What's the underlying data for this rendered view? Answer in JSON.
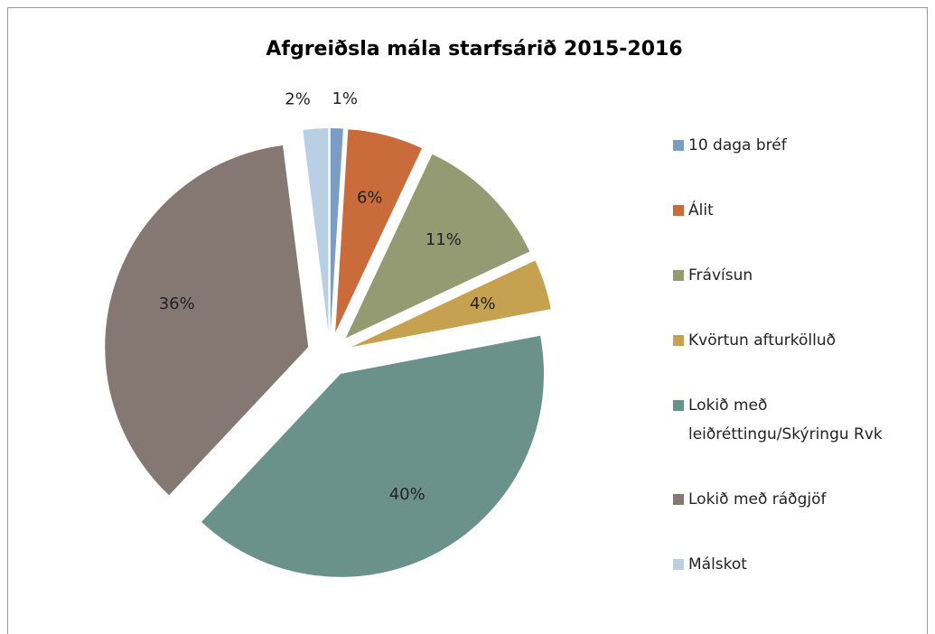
{
  "chart_data": {
    "type": "pie",
    "title": "Afgreiðsla mála starfsárið 2015-2016",
    "categories": [
      "10 daga bréf",
      "Álit",
      "Frávísun",
      "Kvörtun afturkölluð",
      "Lokið með leiðréttingu/Skýringu Rvk",
      "Lokið með ráðgjöf",
      "Málskot"
    ],
    "values": [
      1,
      6,
      11,
      4,
      40,
      36,
      2
    ],
    "value_labels": [
      "1%",
      "6%",
      "11%",
      "4%",
      "40%",
      "36%",
      "2%"
    ],
    "colors": [
      "#7b9dc1",
      "#c96b3a",
      "#949b72",
      "#c6a150",
      "#6b928a",
      "#857873",
      "#b9cfe4"
    ],
    "legend": "right"
  }
}
